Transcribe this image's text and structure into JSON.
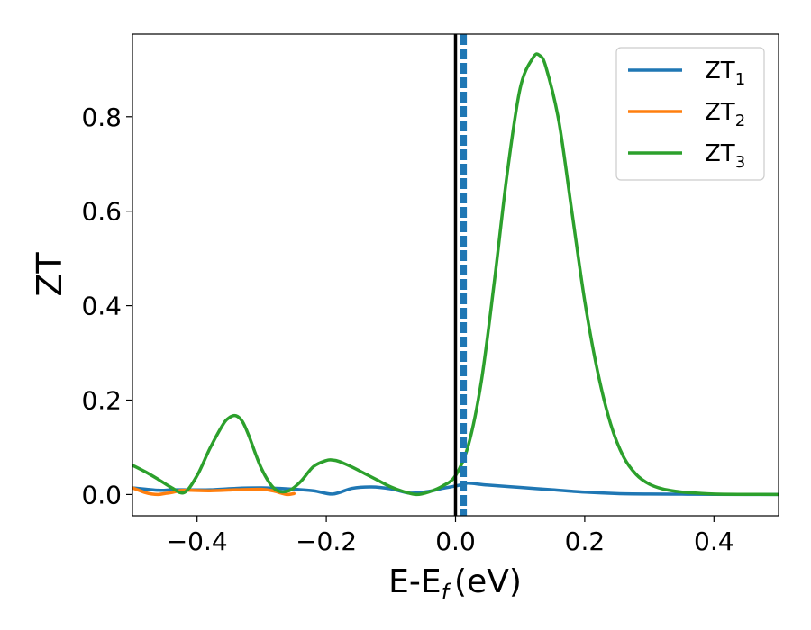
{
  "chart_data": {
    "type": "line",
    "xlabel": "E-E",
    "xlabel_sub": "f",
    "xlabel_unit": "(eV)",
    "ylabel": "ZT",
    "xlim": [
      -0.5,
      0.5
    ],
    "ylim": [
      -0.045,
      0.975
    ],
    "xticks": [
      -0.4,
      -0.2,
      0.0,
      0.2,
      0.4
    ],
    "xtick_labels": [
      "−0.4",
      "−0.2",
      "0.0",
      "0.2",
      "0.4"
    ],
    "yticks": [
      0.0,
      0.2,
      0.4,
      0.6,
      0.8
    ],
    "ytick_labels": [
      "0.0",
      "0.2",
      "0.4",
      "0.6",
      "0.8"
    ],
    "grid": false,
    "legend_position": "top-right",
    "vertical_lines": [
      {
        "x": 0.0,
        "color": "#000000",
        "style": "solid"
      },
      {
        "x": 0.012,
        "color": "#1f77b4",
        "style": "dashed"
      }
    ],
    "series": [
      {
        "name": "ZT",
        "name_sub": "1",
        "color": "#1f77b4",
        "x": [
          -0.5,
          -0.46,
          -0.44,
          -0.42,
          -0.38,
          -0.34,
          -0.3,
          -0.26,
          -0.22,
          -0.19,
          -0.16,
          -0.13,
          -0.1,
          -0.07,
          -0.04,
          -0.02,
          0.0,
          0.01,
          0.02,
          0.05,
          0.1,
          0.15,
          0.2,
          0.25,
          0.3,
          0.35,
          0.4,
          0.45,
          0.5
        ],
        "y": [
          0.014,
          0.009,
          0.01,
          0.01,
          0.01,
          0.013,
          0.014,
          0.012,
          0.008,
          0.001,
          0.013,
          0.016,
          0.012,
          0.003,
          0.007,
          0.013,
          0.018,
          0.021,
          0.024,
          0.02,
          0.015,
          0.01,
          0.005,
          0.002,
          0.001,
          0.0007,
          0.0003,
          0.0001,
          0.0
        ]
      },
      {
        "name": "ZT",
        "name_sub": "2",
        "color": "#ff7f0e",
        "x": [
          -0.5,
          -0.49,
          -0.48,
          -0.47,
          -0.46,
          -0.45,
          -0.44,
          -0.43,
          -0.42,
          -0.38,
          -0.34,
          -0.3,
          -0.28,
          -0.27,
          -0.26,
          -0.25
        ],
        "y": [
          0.014,
          0.009,
          0.004,
          0.001,
          0.0,
          0.002,
          0.004,
          0.007,
          0.009,
          0.008,
          0.01,
          0.011,
          0.007,
          0.003,
          0.0,
          0.002
        ]
      },
      {
        "name": "ZT",
        "name_sub": "3",
        "color": "#2ca02c",
        "x": [
          -0.5,
          -0.48,
          -0.46,
          -0.44,
          -0.42,
          -0.4,
          -0.38,
          -0.36,
          -0.35,
          -0.34,
          -0.33,
          -0.32,
          -0.3,
          -0.28,
          -0.26,
          -0.24,
          -0.22,
          -0.2,
          -0.19,
          -0.18,
          -0.16,
          -0.14,
          -0.12,
          -0.1,
          -0.08,
          -0.06,
          -0.04,
          -0.02,
          0.0,
          0.02,
          0.04,
          0.06,
          0.08,
          0.1,
          0.12,
          0.13,
          0.14,
          0.16,
          0.18,
          0.2,
          0.22,
          0.24,
          0.26,
          0.28,
          0.3,
          0.32,
          0.34,
          0.36,
          0.4,
          0.45,
          0.5
        ],
        "y": [
          0.062,
          0.048,
          0.032,
          0.015,
          0.004,
          0.04,
          0.098,
          0.148,
          0.163,
          0.167,
          0.155,
          0.125,
          0.054,
          0.012,
          0.007,
          0.027,
          0.059,
          0.072,
          0.073,
          0.07,
          0.058,
          0.044,
          0.03,
          0.016,
          0.006,
          0.0,
          0.006,
          0.018,
          0.04,
          0.105,
          0.24,
          0.45,
          0.68,
          0.86,
          0.925,
          0.93,
          0.905,
          0.79,
          0.6,
          0.41,
          0.26,
          0.15,
          0.08,
          0.042,
          0.022,
          0.012,
          0.007,
          0.004,
          0.001,
          0.0003,
          0.0001
        ]
      }
    ]
  }
}
